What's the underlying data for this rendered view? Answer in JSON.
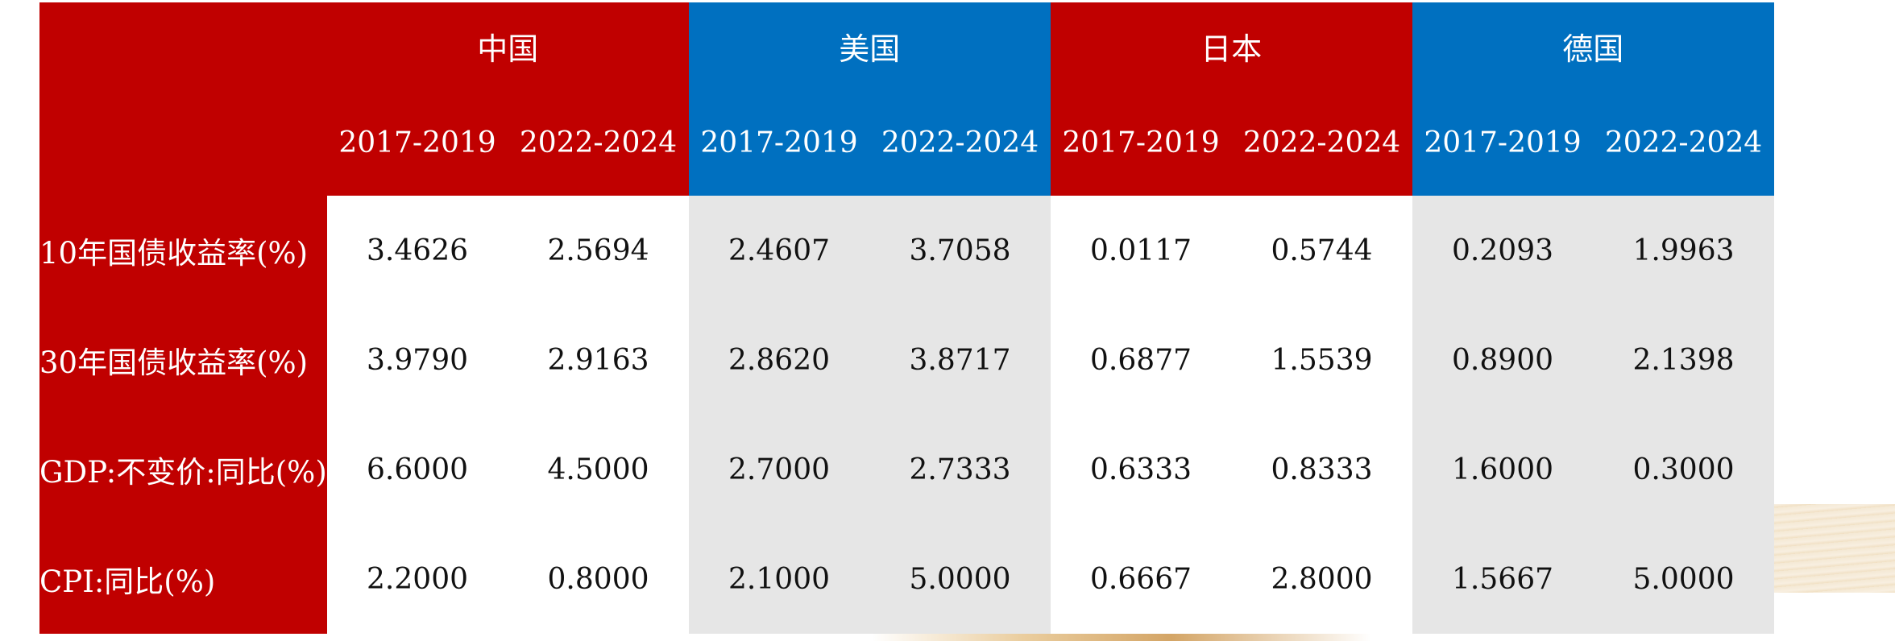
{
  "table": {
    "countries": [
      {
        "name": "中国",
        "color": "#c00000"
      },
      {
        "name": "美国",
        "color": "#0070c0"
      },
      {
        "name": "日本",
        "color": "#c00000"
      },
      {
        "name": "德国",
        "color": "#0070c0"
      }
    ],
    "periods": [
      "2017-2019",
      "2022-2024",
      "2017-2019",
      "2022-2024",
      "2017-2019",
      "2022-2024",
      "2017-2019",
      "2022-2024"
    ],
    "rows": [
      {
        "label": "10年国债收益率(%)",
        "values": [
          "3.4626",
          "2.5694",
          "2.4607",
          "3.7058",
          "0.0117",
          "0.5744",
          "0.2093",
          "1.9963"
        ]
      },
      {
        "label": "30年国债收益率(%)",
        "values": [
          "3.9790",
          "2.9163",
          "2.8620",
          "3.8717",
          "0.6877",
          "1.5539",
          "0.8900",
          "2.1398"
        ]
      },
      {
        "label": "GDP:不变价:同比(%)",
        "values": [
          "6.6000",
          "4.5000",
          "2.7000",
          "2.7333",
          "0.6333",
          "0.8333",
          "1.6000",
          "0.3000"
        ]
      },
      {
        "label": "CPI:同比(%)",
        "values": [
          "2.2000",
          "0.8000",
          "2.1000",
          "5.0000",
          "0.6667",
          "2.8000",
          "1.5667",
          "5.0000"
        ]
      }
    ]
  },
  "colors": {
    "header_red": "#c00000",
    "header_blue": "#0070c0",
    "body_gray": "#e6e6e6",
    "body_white": "#ffffff"
  }
}
